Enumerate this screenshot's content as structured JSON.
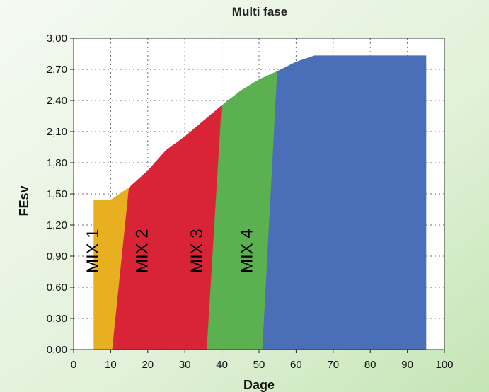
{
  "chart_data": {
    "type": "area",
    "title": "Multi fase",
    "xlabel": "Dage",
    "ylabel": "FEsv",
    "xlim": [
      0,
      100
    ],
    "ylim": [
      0,
      3.0
    ],
    "x_ticks": [
      "0",
      "10",
      "20",
      "30",
      "40",
      "50",
      "60",
      "70",
      "80",
      "90",
      "100"
    ],
    "y_ticks": [
      "0,00",
      "0,30",
      "0,60",
      "0,90",
      "1,20",
      "1,50",
      "1,80",
      "2,10",
      "2,40",
      "2,70",
      "3,00"
    ],
    "grid": true,
    "series": [
      {
        "name": "MIX 1",
        "color": "#e8b020",
        "points": [
          [
            5.5,
            0
          ],
          [
            5.5,
            1.44
          ],
          [
            10,
            1.44
          ],
          [
            15,
            1.56
          ],
          [
            10.5,
            0
          ]
        ]
      },
      {
        "name": "MIX 2",
        "color": "#d82436",
        "points": [
          [
            10.5,
            0
          ],
          [
            15,
            1.56
          ],
          [
            20,
            1.72
          ],
          [
            25,
            1.92
          ],
          [
            30,
            2.05
          ],
          [
            40,
            2.35
          ],
          [
            36,
            0
          ]
        ]
      },
      {
        "name": "MIX 3",
        "color": "#5bb04f",
        "points": [
          [
            36,
            0
          ],
          [
            40,
            2.35
          ],
          [
            45,
            2.49
          ],
          [
            50,
            2.6
          ],
          [
            55,
            2.68
          ],
          [
            51,
            0
          ]
        ]
      },
      {
        "name": "MIX 4",
        "color": "#4a6fb8",
        "points": [
          [
            51,
            0
          ],
          [
            55,
            2.68
          ],
          [
            60,
            2.77
          ],
          [
            65,
            2.83
          ],
          [
            95,
            2.83
          ],
          [
            95,
            0
          ]
        ]
      }
    ]
  }
}
